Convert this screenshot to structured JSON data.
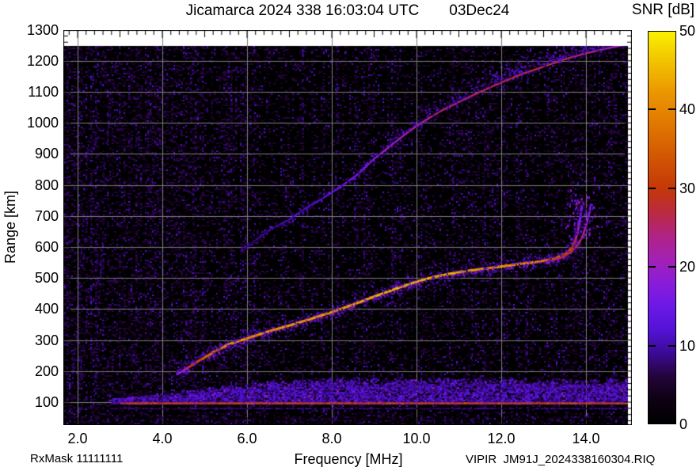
{
  "header": {
    "title": "Jicamarca 2024 338 16:03:04 UTC",
    "date": "03Dec24"
  },
  "footer": {
    "rxmask": "RxMask 11111111",
    "file_id": "VIPIR  JM91J_2024338160304.RIQ"
  },
  "colorbar": {
    "title": "SNR [dB]",
    "min": 0,
    "max": 50,
    "ticks": [
      {
        "value": 0,
        "label": "0"
      },
      {
        "value": 10,
        "label": "10"
      },
      {
        "value": 20,
        "label": "20"
      },
      {
        "value": 30,
        "label": "30"
      },
      {
        "value": 40,
        "label": "40"
      },
      {
        "value": 50,
        "label": "50"
      }
    ],
    "stops": [
      {
        "v": 0,
        "c": "#000000"
      },
      {
        "v": 3,
        "c": "#0d0112"
      },
      {
        "v": 6,
        "c": "#23043a"
      },
      {
        "v": 9,
        "c": "#3c0a96"
      },
      {
        "v": 12,
        "c": "#5313d6"
      },
      {
        "v": 15,
        "c": "#6d18e8"
      },
      {
        "v": 18,
        "c": "#8a1dd8"
      },
      {
        "v": 21,
        "c": "#a321b4"
      },
      {
        "v": 24,
        "c": "#b12383"
      },
      {
        "v": 27,
        "c": "#bb2a3e"
      },
      {
        "v": 30,
        "c": "#c53708"
      },
      {
        "v": 34,
        "c": "#d25603"
      },
      {
        "v": 38,
        "c": "#e07600"
      },
      {
        "v": 42,
        "c": "#ea9400"
      },
      {
        "v": 46,
        "c": "#f2c000"
      },
      {
        "v": 50,
        "c": "#faf000"
      }
    ]
  },
  "chart_data": {
    "type": "heatmap",
    "title": "Jicamarca 2024 338 16:03:04 UTC  03Dec24",
    "xlabel": "Frequency [MHz]",
    "ylabel": "Range [km]",
    "colorbar_label": "SNR [dB]",
    "xlim_mhz": [
      1.67,
      15.08
    ],
    "ylim_km": [
      30,
      1300
    ],
    "snr_range_db": [
      0,
      50
    ],
    "grid": true,
    "x_minor_step_mhz": 0.2,
    "y_minor_step_km": 20,
    "x_ticks": [
      {
        "value": 2,
        "label": "2.0"
      },
      {
        "value": 4,
        "label": "4.0"
      },
      {
        "value": 6,
        "label": "6.0"
      },
      {
        "value": 8,
        "label": "8.0"
      },
      {
        "value": 10,
        "label": "10.0"
      },
      {
        "value": 12,
        "label": "12.0"
      },
      {
        "value": 14,
        "label": "14.0"
      }
    ],
    "y_ticks": [
      {
        "value": 100,
        "label": "100"
      },
      {
        "value": 200,
        "label": "200"
      },
      {
        "value": 300,
        "label": "300"
      },
      {
        "value": 400,
        "label": "400"
      },
      {
        "value": 500,
        "label": "500"
      },
      {
        "value": 600,
        "label": "600"
      },
      {
        "value": 700,
        "label": "700"
      },
      {
        "value": 800,
        "label": "800"
      },
      {
        "value": 900,
        "label": "900"
      },
      {
        "value": 1000,
        "label": "1000"
      },
      {
        "value": 1100,
        "label": "1100"
      },
      {
        "value": 1200,
        "label": "1200"
      },
      {
        "value": 1300,
        "label": "1300"
      }
    ],
    "series": [
      {
        "name": "E-region echo band",
        "type": "band",
        "f_start_mhz": 2.75,
        "f_core_start_mhz": 3.0,
        "f_end_mhz": 14.97,
        "core_height_km": 96,
        "core_snr_db": 30,
        "band_base_km": 88,
        "band_top_min_km": 112,
        "band_top_max_km": 168
      },
      {
        "name": "F-region O-mode trace",
        "type": "trace",
        "points_f_h_snr": [
          [
            4.35,
            190,
            15
          ],
          [
            4.5,
            202,
            20
          ],
          [
            4.65,
            215,
            26
          ],
          [
            4.85,
            232,
            31
          ],
          [
            5.05,
            248,
            35
          ],
          [
            5.3,
            268,
            38
          ],
          [
            5.6,
            288,
            40
          ],
          [
            6.0,
            305,
            41
          ],
          [
            6.5,
            328,
            41
          ],
          [
            7.0,
            347,
            42
          ],
          [
            7.5,
            368,
            42
          ],
          [
            8.0,
            390,
            42
          ],
          [
            8.5,
            414,
            43
          ],
          [
            9.0,
            440,
            44
          ],
          [
            9.5,
            465,
            45
          ],
          [
            10.0,
            488,
            45
          ],
          [
            10.4,
            503,
            44
          ],
          [
            10.8,
            514,
            43
          ],
          [
            11.2,
            523,
            43
          ],
          [
            11.6,
            530,
            42
          ],
          [
            12.0,
            537,
            42
          ],
          [
            12.4,
            544,
            41
          ],
          [
            12.8,
            551,
            40
          ],
          [
            13.1,
            558,
            38
          ],
          [
            13.35,
            567,
            36
          ],
          [
            13.55,
            580,
            33
          ],
          [
            13.68,
            598,
            30
          ],
          [
            13.76,
            625,
            26
          ],
          [
            13.82,
            660,
            22
          ],
          [
            13.87,
            700,
            18
          ],
          [
            13.9,
            735,
            15
          ]
        ]
      },
      {
        "name": "F-region X-mode cusp",
        "type": "trace",
        "points_f_h_snr": [
          [
            13.2,
            556,
            24
          ],
          [
            13.45,
            568,
            27
          ],
          [
            13.65,
            584,
            28
          ],
          [
            13.8,
            605,
            27
          ],
          [
            13.92,
            635,
            25
          ],
          [
            14.0,
            668,
            22
          ],
          [
            14.07,
            705,
            18
          ],
          [
            14.12,
            740,
            14
          ]
        ]
      },
      {
        "name": "F-region second-hop trace",
        "type": "trace",
        "points_f_h_snr": [
          [
            5.85,
            585,
            7
          ],
          [
            6.2,
            622,
            8
          ],
          [
            6.6,
            660,
            9
          ],
          [
            7.0,
            689,
            10
          ],
          [
            7.4,
            726,
            11
          ],
          [
            7.8,
            758,
            12
          ],
          [
            8.2,
            793,
            14
          ],
          [
            8.6,
            833,
            16
          ],
          [
            9.0,
            884,
            18
          ],
          [
            9.4,
            928,
            20
          ],
          [
            9.8,
            970,
            22
          ],
          [
            10.2,
            1008,
            23
          ],
          [
            10.6,
            1040,
            24
          ],
          [
            11.0,
            1067,
            25
          ],
          [
            11.5,
            1100,
            26
          ],
          [
            12.0,
            1130,
            26
          ],
          [
            12.5,
            1158,
            27
          ],
          [
            13.0,
            1181,
            27
          ],
          [
            13.5,
            1205,
            26
          ],
          [
            14.0,
            1224,
            24
          ],
          [
            14.5,
            1240,
            21
          ],
          [
            14.95,
            1252,
            18
          ]
        ]
      }
    ],
    "spread_scatter": {
      "cusp_f_range_mhz": [
        13.55,
        14.25
      ],
      "cusp_h_range_km": [
        625,
        790
      ],
      "second_hop_spread_from_mhz": 8.6,
      "second_hop_spread_max_km": 75
    },
    "interference_columns_mhz": [
      2.3,
      2.45,
      4.55,
      5.15,
      6.15,
      7.3,
      8.1,
      8.55,
      8.75,
      9.4,
      9.6,
      10.1,
      10.4,
      10.85,
      11.3,
      11.6,
      12.05,
      12.35,
      12.6,
      13.1,
      13.9,
      14.3
    ],
    "noise": {
      "background_snr_db_max": 8,
      "left_edge_enhanced": true,
      "diagonal_streaks": 6
    }
  }
}
